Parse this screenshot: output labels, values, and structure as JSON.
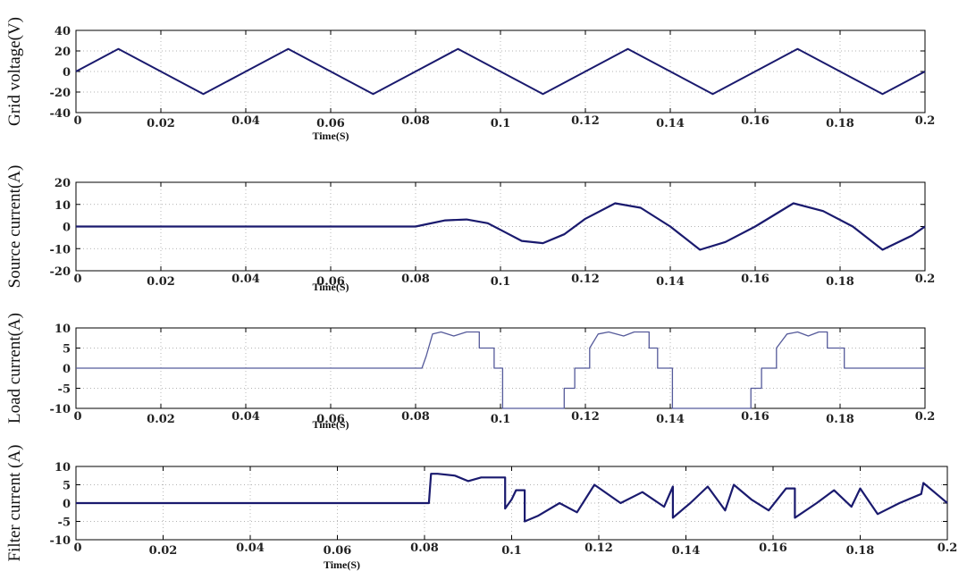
{
  "chart_data": [
    {
      "type": "line",
      "ylabel": "Grid voltage(V)",
      "xlabel": "Time(S)",
      "xlim": [
        0,
        0.2
      ],
      "ylim": [
        -40,
        40
      ],
      "xticks": [
        "0",
        "0.02",
        "0.04",
        "0.06",
        "0.08",
        "0.1",
        "0.12",
        "0.14",
        "0.16",
        "0.18",
        "0.2"
      ],
      "yticks": [
        "40",
        "20",
        "0",
        "-20",
        "-40"
      ],
      "grid": true,
      "line_color": "#1a1a6e",
      "series": [
        {
          "x": [
            0,
            0.01,
            0.02,
            0.03,
            0.04,
            0.05,
            0.06,
            0.07,
            0.08,
            0.09,
            0.1,
            0.11,
            0.12,
            0.13,
            0.14,
            0.15,
            0.16,
            0.17,
            0.18,
            0.19,
            0.2
          ],
          "y": [
            0,
            22,
            0,
            -22,
            0,
            22,
            0,
            -22,
            0,
            22,
            0,
            -22,
            0,
            22,
            0,
            -22,
            0,
            22,
            0,
            -22,
            0
          ]
        }
      ]
    },
    {
      "type": "line",
      "ylabel": "Source current(A)",
      "xlabel": "Time(S)",
      "xlim": [
        0,
        0.2
      ],
      "ylim": [
        -20,
        20
      ],
      "xticks": [
        "0",
        "0.02",
        "0.04",
        "0.06",
        "0.08",
        "0.1",
        "0.12",
        "0.14",
        "0.16",
        "0.18",
        "0.2"
      ],
      "yticks": [
        "20",
        "10",
        "0",
        "-10",
        "-20"
      ],
      "grid": true,
      "line_color": "#1a1a6e",
      "series": [
        {
          "x": [
            0,
            0.08,
            0.083,
            0.087,
            0.092,
            0.097,
            0.101,
            0.105,
            0.11,
            0.115,
            0.12,
            0.127,
            0.133,
            0.14,
            0.147,
            0.153,
            0.16,
            0.169,
            0.176,
            0.183,
            0.19,
            0.197,
            0.2
          ],
          "y": [
            0,
            0,
            1.2,
            2.8,
            3.2,
            1.5,
            -2.5,
            -6.5,
            -7.5,
            -3.5,
            3.5,
            10.5,
            8.5,
            0,
            -10.5,
            -7,
            0,
            10.5,
            7,
            0,
            -10.5,
            -4,
            0
          ]
        }
      ]
    },
    {
      "type": "line",
      "ylabel": "Load current(A)",
      "xlabel": "Time(S)",
      "xlim": [
        0,
        0.2
      ],
      "ylim": [
        -10,
        10
      ],
      "xticks": [
        "0",
        "0.02",
        "0.04",
        "0.06",
        "0.08",
        "0.1",
        "0.12",
        "0.14",
        "0.16",
        "0.18",
        "0.2"
      ],
      "yticks": [
        "10",
        "5",
        "0",
        "-5",
        "-10"
      ],
      "grid": true,
      "line_color": "#555a9a",
      "series": [
        {
          "x": [
            0,
            0.0815,
            0.0825,
            0.084,
            0.086,
            0.089,
            0.092,
            0.095,
            0.095,
            0.0985,
            0.0985,
            0.1005,
            0.1005,
            0.115,
            0.115,
            0.1175,
            0.1175,
            0.121,
            0.121,
            0.123,
            0.1255,
            0.129,
            0.1315,
            0.135,
            0.135,
            0.137,
            0.137,
            0.1405,
            0.1405,
            0.159,
            0.159,
            0.1615,
            0.1615,
            0.165,
            0.165,
            0.1675,
            0.17,
            0.1725,
            0.175,
            0.177,
            0.177,
            0.181,
            0.181,
            0.2,
            0.2
          ],
          "y": [
            0,
            0,
            3,
            8.5,
            9,
            8,
            9,
            9,
            5,
            5,
            0,
            0,
            -10,
            -10,
            -5,
            -5,
            0,
            0,
            5,
            8.5,
            9,
            8,
            9,
            9,
            5,
            5,
            0,
            0,
            -10,
            -10,
            -5,
            -5,
            0,
            0,
            5,
            8.5,
            9,
            8,
            9,
            9,
            5,
            5,
            0,
            0,
            0
          ]
        }
      ]
    },
    {
      "type": "line",
      "ylabel": "Filter current (A)",
      "xlabel": "Time(S)",
      "xlim": [
        0,
        0.2
      ],
      "ylim": [
        -10,
        10
      ],
      "xticks": [
        "0",
        "0.02",
        "0.04",
        "0.06",
        "0.08",
        "0.1",
        "0.12",
        "0.14",
        "0.16",
        "0.18",
        "0.2"
      ],
      "yticks": [
        "10",
        "5",
        "0",
        "-5",
        "-10"
      ],
      "grid": true,
      "line_color": "#1a1a6e",
      "series": [
        {
          "x": [
            0,
            0.081,
            0.0815,
            0.083,
            0.087,
            0.09,
            0.093,
            0.0955,
            0.0985,
            0.0985,
            0.1,
            0.101,
            0.103,
            0.103,
            0.106,
            0.111,
            0.115,
            0.119,
            0.119,
            0.125,
            0.13,
            0.135,
            0.137,
            0.137,
            0.141,
            0.145,
            0.149,
            0.151,
            0.151,
            0.155,
            0.159,
            0.163,
            0.165,
            0.165,
            0.17,
            0.174,
            0.178,
            0.18,
            0.18,
            0.184,
            0.189,
            0.194,
            0.1945,
            0.198,
            0.2
          ],
          "y": [
            0,
            0,
            8,
            8,
            7.5,
            6,
            7,
            7,
            7,
            -1.5,
            1,
            3.5,
            3.5,
            -5,
            -3.5,
            0,
            -2.5,
            5,
            5,
            0,
            3,
            -1,
            4.5,
            -4,
            0,
            4.5,
            -2,
            5,
            5,
            1,
            -2,
            4,
            4,
            -4,
            0,
            3.5,
            -1,
            4,
            4,
            -3,
            0,
            2.5,
            5.5,
            2,
            0
          ]
        }
      ]
    }
  ]
}
